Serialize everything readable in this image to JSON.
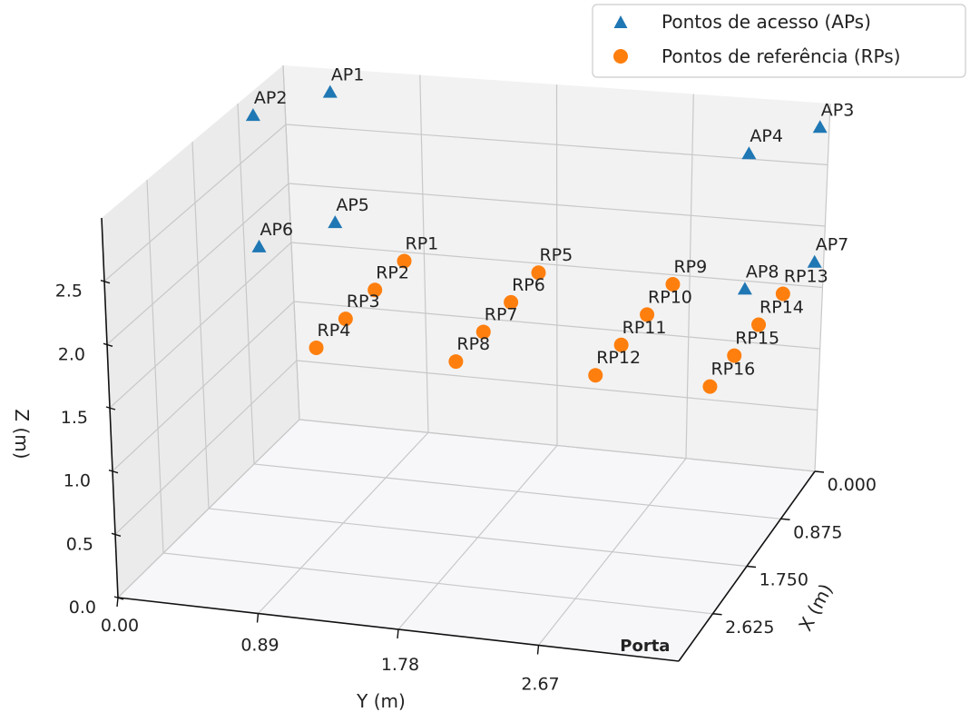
{
  "chart_data": {
    "type": "scatter3d",
    "xlabel": "X (m)",
    "ylabel": "Y (m)",
    "zlabel": "Z (m)",
    "x_ticks": [
      "0.000",
      "0.875",
      "1.750",
      "2.625"
    ],
    "y_ticks": [
      "0.00",
      "0.89",
      "1.78",
      "2.67"
    ],
    "z_ticks": [
      "0.0",
      "0.5",
      "1.0",
      "1.5",
      "2.0",
      "2.5"
    ],
    "xlim": [
      0,
      3.5
    ],
    "ylim": [
      0,
      3.56
    ],
    "zlim": [
      0,
      3
    ],
    "grid": true,
    "legend_position": "top-right",
    "annotations": [
      {
        "text": "Porta",
        "x": 3.5,
        "y": 3.3,
        "z": 0
      }
    ],
    "series": [
      {
        "name": "Pontos de acesso (APs)",
        "marker": "triangle",
        "color": "#1f77b4",
        "points": [
          {
            "label": "AP1",
            "x": 0.0,
            "y": 0.3,
            "z": 2.8
          },
          {
            "label": "AP2",
            "x": 0.6,
            "y": 0.0,
            "z": 2.8
          },
          {
            "label": "AP3",
            "x": 0.0,
            "y": 3.5,
            "z": 2.8
          },
          {
            "label": "AP4",
            "x": 0.6,
            "y": 3.2,
            "z": 2.8
          },
          {
            "label": "AP5",
            "x": 0.0,
            "y": 0.3,
            "z": 1.7
          },
          {
            "label": "AP6",
            "x": 0.6,
            "y": 0.0,
            "z": 1.7
          },
          {
            "label": "AP7",
            "x": 0.0,
            "y": 3.5,
            "z": 1.7
          },
          {
            "label": "AP8",
            "x": 0.6,
            "y": 3.2,
            "z": 1.7
          }
        ]
      },
      {
        "name": "Pontos de referência (RPs)",
        "marker": "circle",
        "color": "#ff7f0e",
        "points": [
          {
            "label": "RP1",
            "x": 0.4,
            "y": 0.89,
            "z": 1.6
          },
          {
            "label": "RP2",
            "x": 1.0,
            "y": 0.89,
            "z": 1.6
          },
          {
            "label": "RP3",
            "x": 1.6,
            "y": 0.89,
            "z": 1.6
          },
          {
            "label": "RP4",
            "x": 2.2,
            "y": 0.89,
            "z": 1.6
          },
          {
            "label": "RP5",
            "x": 0.4,
            "y": 1.78,
            "z": 1.6
          },
          {
            "label": "RP6",
            "x": 1.0,
            "y": 1.78,
            "z": 1.6
          },
          {
            "label": "RP7",
            "x": 1.6,
            "y": 1.78,
            "z": 1.6
          },
          {
            "label": "RP8",
            "x": 2.2,
            "y": 1.78,
            "z": 1.6
          },
          {
            "label": "RP9",
            "x": 0.4,
            "y": 2.67,
            "z": 1.6
          },
          {
            "label": "RP10",
            "x": 1.0,
            "y": 2.67,
            "z": 1.6
          },
          {
            "label": "RP11",
            "x": 1.6,
            "y": 2.67,
            "z": 1.6
          },
          {
            "label": "RP12",
            "x": 2.2,
            "y": 2.67,
            "z": 1.6
          },
          {
            "label": "RP13",
            "x": 0.4,
            "y": 3.4,
            "z": 1.6
          },
          {
            "label": "RP14",
            "x": 1.0,
            "y": 3.4,
            "z": 1.6
          },
          {
            "label": "RP15",
            "x": 1.6,
            "y": 3.4,
            "z": 1.6
          },
          {
            "label": "RP16",
            "x": 2.2,
            "y": 3.4,
            "z": 1.6
          }
        ]
      }
    ]
  }
}
